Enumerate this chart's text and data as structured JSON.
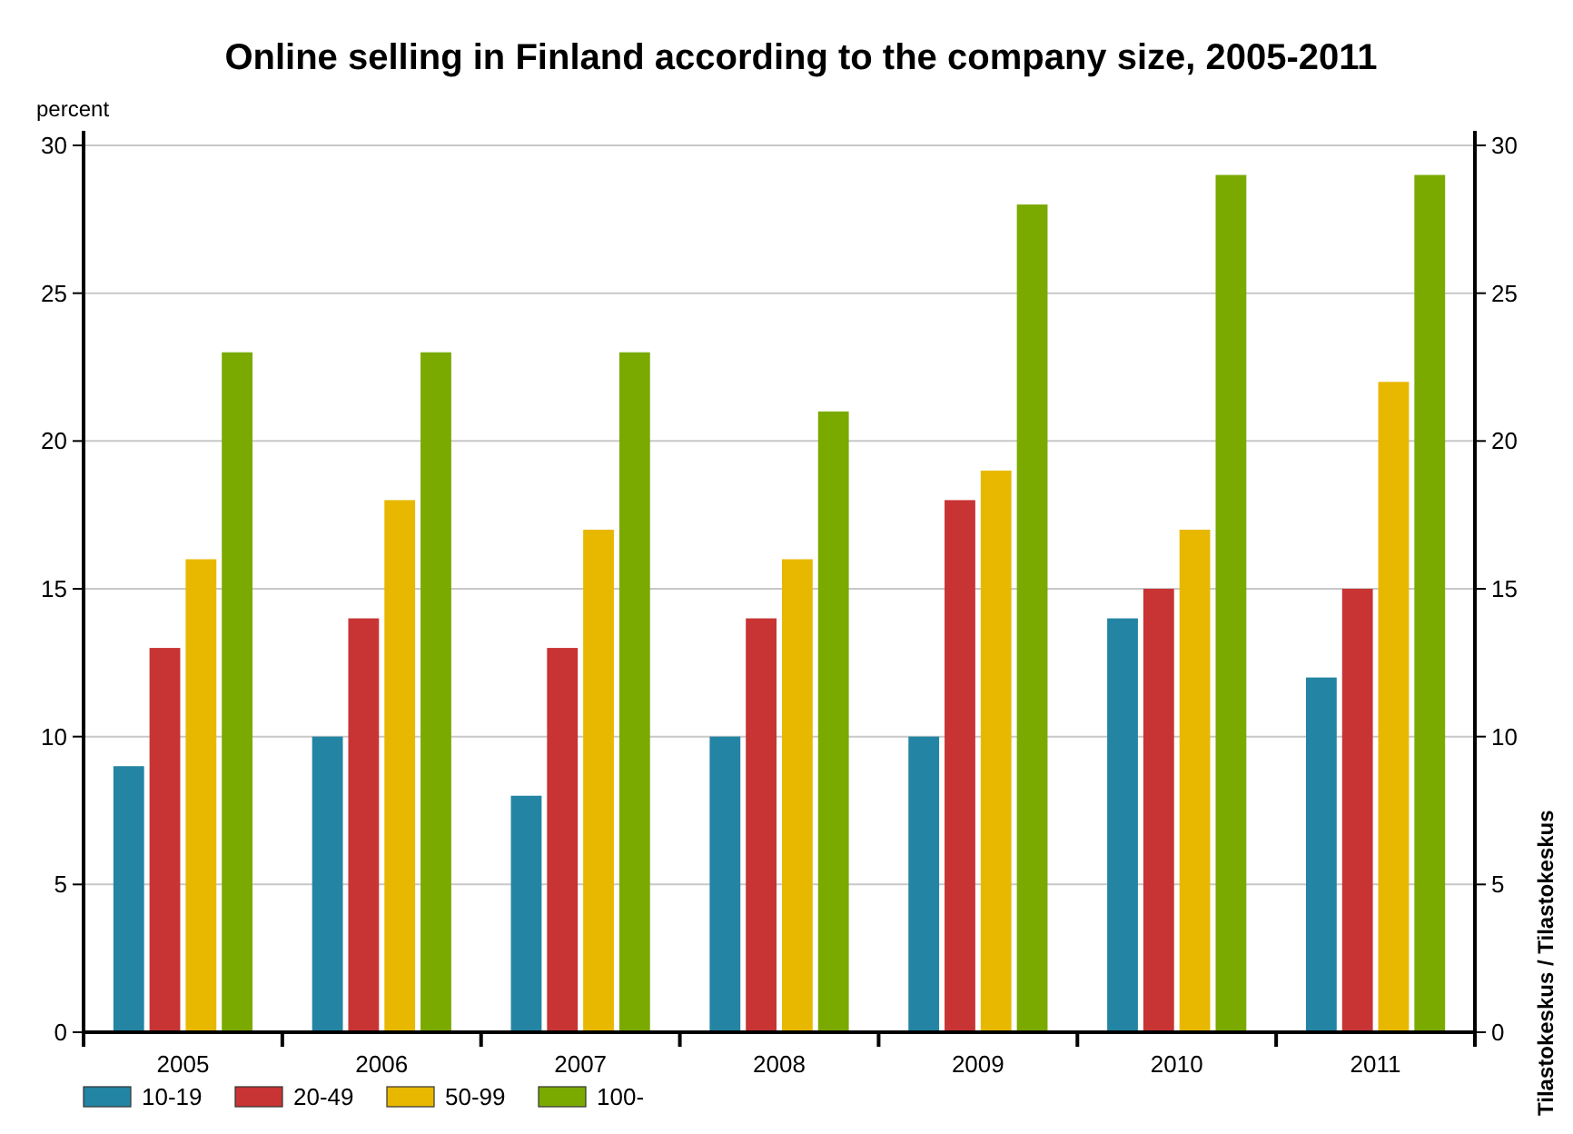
{
  "chart_data": {
    "type": "bar",
    "title": "Online selling in Finland according to the company size, 2005-2011",
    "ylabel": "percent",
    "categories": [
      "2005",
      "2006",
      "2007",
      "2008",
      "2009",
      "2010",
      "2011"
    ],
    "series": [
      {
        "name": "10-19",
        "color": "#2484a4",
        "values": [
          9,
          10,
          8,
          10,
          10,
          14,
          12
        ]
      },
      {
        "name": "20-49",
        "color": "#c83434",
        "values": [
          13,
          14,
          13,
          14,
          18,
          15,
          15
        ]
      },
      {
        "name": "50-99",
        "color": "#e8b800",
        "values": [
          16,
          18,
          17,
          16,
          19,
          17,
          22
        ]
      },
      {
        "name": "100-",
        "color": "#7aaa00",
        "values": [
          23,
          23,
          23,
          21,
          28,
          29,
          29
        ]
      }
    ],
    "ylim": [
      0,
      30
    ],
    "yticks": [
      0,
      5,
      10,
      15,
      20,
      25,
      30
    ],
    "y2lim": [
      0,
      30
    ],
    "y2ticks": [
      0,
      5,
      10,
      15,
      20,
      25,
      30
    ],
    "grid": "y",
    "legend": "bottom left",
    "annotations": [
      "Tilastokeskus / Tilastokeskus"
    ]
  }
}
